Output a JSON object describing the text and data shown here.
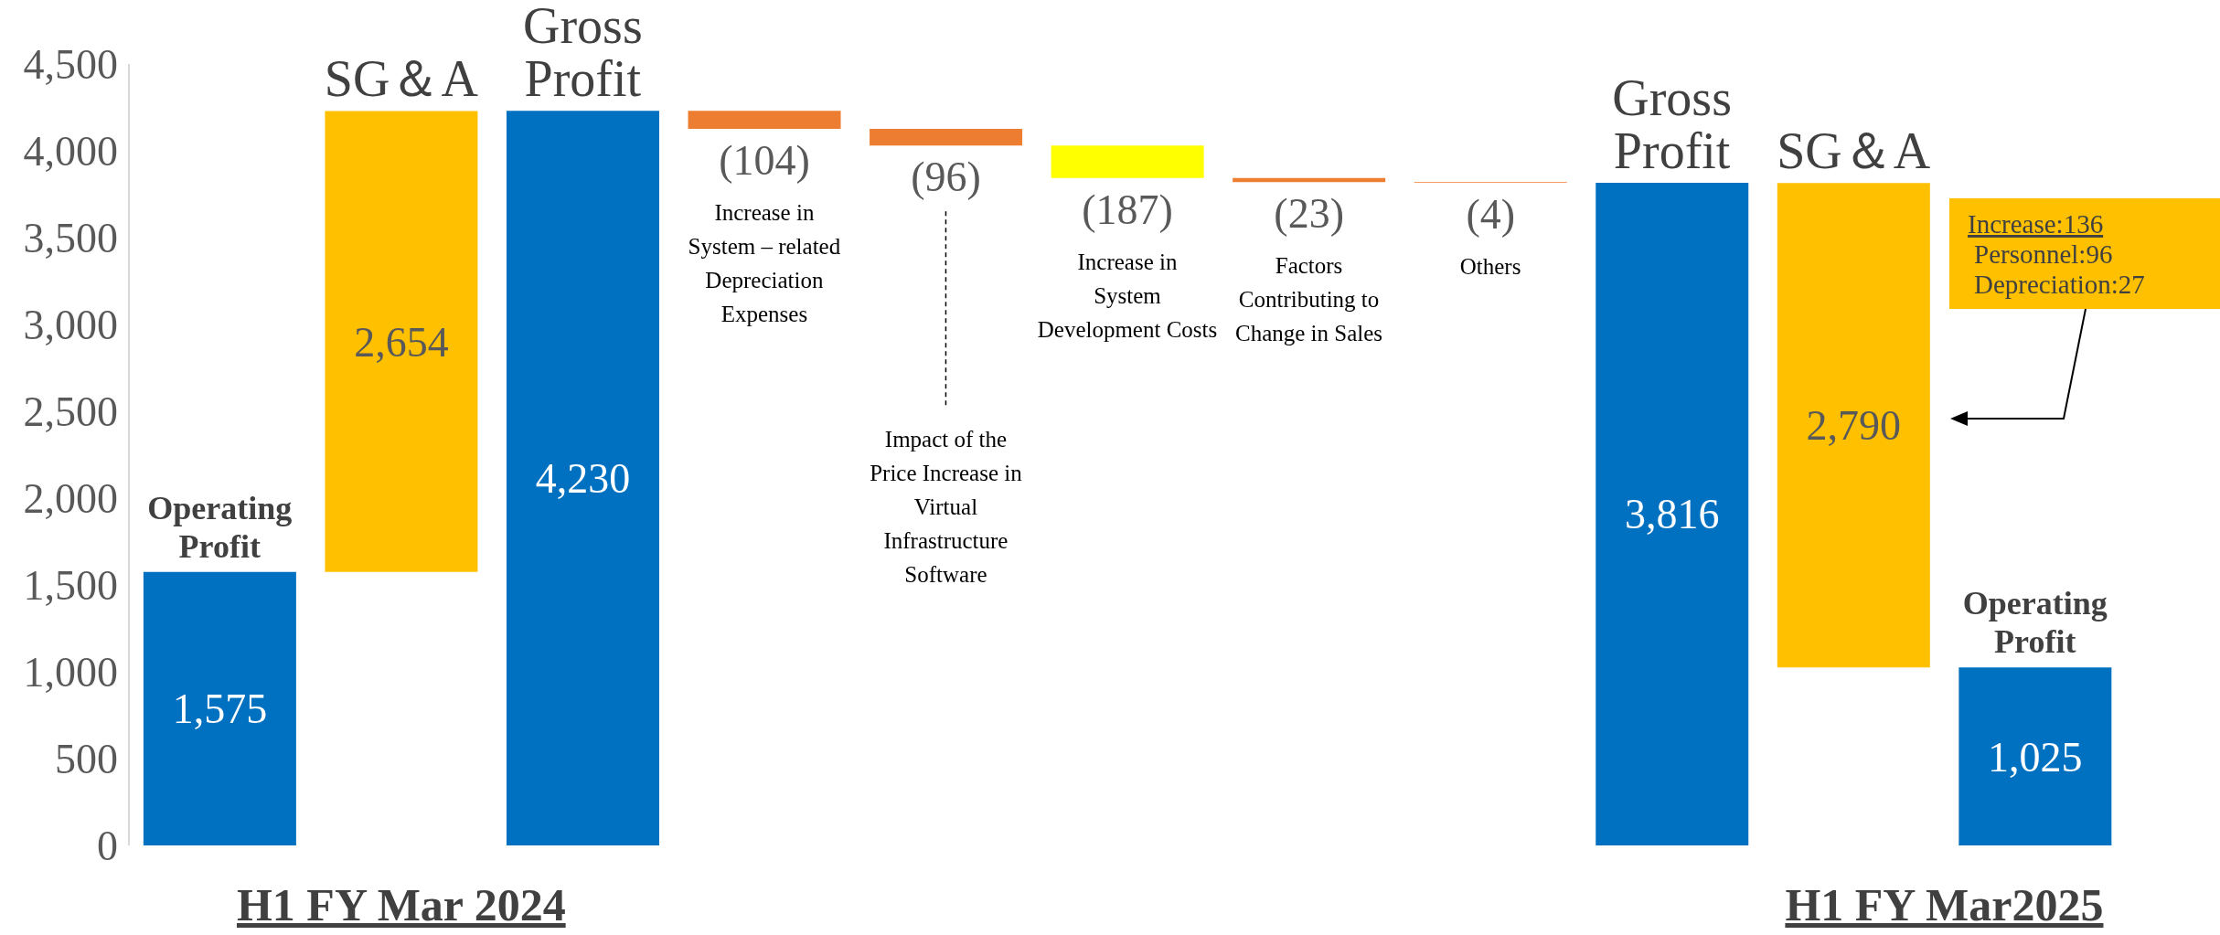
{
  "chart_data": {
    "type": "bar",
    "categories": [
      "Operating Profit",
      "SG＆A",
      "Gross Profit",
      "Increase in System – related Depreciation Expenses",
      "Impact of the Price Increase in Virtual Infrastructure Software",
      "Increase in System Development Costs",
      "Factors Contributing to Change in Sales",
      "Others",
      "Gross Profit",
      "SG＆A",
      "Operating Profit"
    ],
    "values": [
      1575,
      2654,
      4230,
      -104,
      -96,
      -187,
      -23,
      -4,
      3816,
      2790,
      1025
    ],
    "base": [
      0,
      1575,
      0,
      4230,
      4126,
      4030,
      3843,
      3820,
      0,
      1025,
      0
    ],
    "colors": [
      "#0070c0",
      "#ffc000",
      "#0070c0",
      "#ed7d31",
      "#ed7d31",
      "#ffff00",
      "#ed7d31",
      "#ed7d31",
      "#0070c0",
      "#ffc000",
      "#0070c0"
    ],
    "value_labels": [
      "1,575",
      "2,654",
      "4,230",
      "(104)",
      "(96)",
      "(187)",
      "(23)",
      "(4)",
      "3,816",
      "2,790",
      "1,025"
    ],
    "ylim": [
      0,
      4500
    ],
    "yticks": [
      {
        "value": 0,
        "label": "0"
      },
      {
        "value": 500,
        "label": "500"
      },
      {
        "value": 1000,
        "label": "1,000"
      },
      {
        "value": 1500,
        "label": "1,500"
      },
      {
        "value": 2000,
        "label": "2,000"
      },
      {
        "value": 2500,
        "label": "2,500"
      },
      {
        "value": 3000,
        "label": "3,000"
      },
      {
        "value": 3500,
        "label": "3,500"
      },
      {
        "value": 4000,
        "label": "4,000"
      },
      {
        "value": 4500,
        "label": "4,500"
      }
    ],
    "annotations": [
      "H1 FY Mar 2024",
      "H1 FY Mar2025",
      "Increase:136\nPersonnel:96\nDepreciation:27"
    ]
  }
}
